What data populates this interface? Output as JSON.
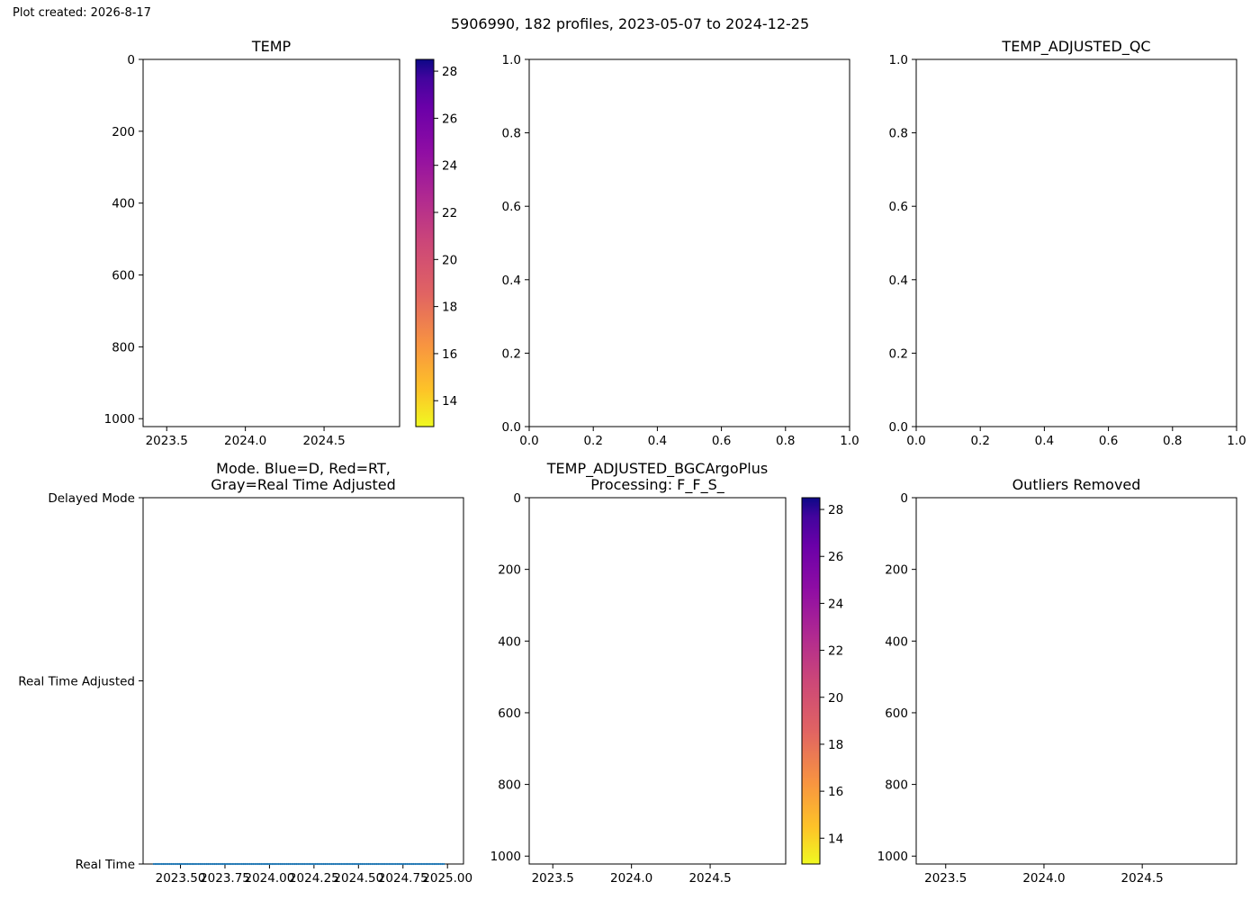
{
  "figure": {
    "created_label": "Plot created: 2026-8-17",
    "suptitle": "5906990, 182 profiles, 2023-05-07 to 2024-12-25"
  },
  "chart_data": [
    {
      "id": "temp",
      "type": "heatmap",
      "title": [
        "TEMP"
      ],
      "xlabel": "",
      "ylabel": "",
      "xlim": [
        2023.35,
        2024.98
      ],
      "ylim": [
        1022,
        0
      ],
      "x_ticks": [
        2023.5,
        2024.0,
        2024.5
      ],
      "x_tick_labels": [
        "2023.5",
        "2024.0",
        "2024.5"
      ],
      "y_ticks": [
        0,
        200,
        400,
        600,
        800,
        1000
      ],
      "y_tick_labels": [
        "0",
        "200",
        "400",
        "600",
        "800",
        "1000"
      ],
      "grid": false,
      "values": [],
      "colorbar": {
        "colormap": "plasma_r",
        "range": [
          12.9,
          28.5
        ],
        "ticks": [
          14,
          16,
          18,
          20,
          22,
          24,
          26,
          28
        ],
        "tick_labels": [
          "14",
          "16",
          "18",
          "20",
          "22",
          "24",
          "26",
          "28"
        ]
      }
    },
    {
      "id": "empty-1",
      "type": "scatter",
      "title": [
        ""
      ],
      "xlabel": "",
      "ylabel": "",
      "xlim": [
        0,
        1
      ],
      "ylim": [
        0,
        1
      ],
      "x_ticks": [
        0,
        0.2,
        0.4,
        0.6,
        0.8,
        1.0
      ],
      "x_tick_labels": [
        "0.0",
        "0.2",
        "0.4",
        "0.6",
        "0.8",
        "1.0"
      ],
      "y_ticks": [
        0,
        0.2,
        0.4,
        0.6,
        0.8,
        1.0
      ],
      "y_tick_labels": [
        "0.0",
        "0.2",
        "0.4",
        "0.6",
        "0.8",
        "1.0"
      ],
      "grid": false,
      "points": []
    },
    {
      "id": "temp-adjusted-qc",
      "type": "scatter",
      "title": [
        "TEMP_ADJUSTED_QC"
      ],
      "xlabel": "",
      "ylabel": "",
      "xlim": [
        0,
        1
      ],
      "ylim": [
        0,
        1
      ],
      "x_ticks": [
        0,
        0.2,
        0.4,
        0.6,
        0.8,
        1.0
      ],
      "x_tick_labels": [
        "0.0",
        "0.2",
        "0.4",
        "0.6",
        "0.8",
        "1.0"
      ],
      "y_ticks": [
        0,
        0.2,
        0.4,
        0.6,
        0.8,
        1.0
      ],
      "y_tick_labels": [
        "0.0",
        "0.2",
        "0.4",
        "0.6",
        "0.8",
        "1.0"
      ],
      "grid": false,
      "points": []
    },
    {
      "id": "mode",
      "type": "scatter",
      "title": [
        "Mode. Blue=D, Red=RT,",
        "Gray=Real Time Adjusted"
      ],
      "xlabel": "",
      "ylabel": "",
      "xlim": [
        2023.29,
        2025.09
      ],
      "ylim": [
        0,
        2
      ],
      "x_ticks": [
        2023.5,
        2023.75,
        2024.0,
        2024.25,
        2024.5,
        2024.75,
        2025.0
      ],
      "x_tick_labels": [
        "2023.50",
        "2023.75",
        "2024.00",
        "2024.25",
        "2024.50",
        "2024.75",
        "2025.00"
      ],
      "y_ticks": [
        0,
        1,
        2
      ],
      "y_tick_labels": [
        "Real Time",
        "Real Time Adjusted",
        "Delayed Mode"
      ],
      "grid": false,
      "series_color": "#1f77b4",
      "points": {
        "x_start": 2023.35,
        "x_end": 2024.98,
        "count": 182,
        "y": 0
      }
    },
    {
      "id": "temp-adjusted-bgcargoplus",
      "type": "heatmap",
      "title": [
        "TEMP_ADJUSTED_BGCArgoPlus",
        "Processing: F_F_S_"
      ],
      "xlabel": "",
      "ylabel": "",
      "xlim": [
        2023.35,
        2024.98
      ],
      "ylim": [
        1022,
        0
      ],
      "x_ticks": [
        2023.5,
        2024.0,
        2024.5
      ],
      "x_tick_labels": [
        "2023.5",
        "2024.0",
        "2024.5"
      ],
      "y_ticks": [
        0,
        200,
        400,
        600,
        800,
        1000
      ],
      "y_tick_labels": [
        "0",
        "200",
        "400",
        "600",
        "800",
        "1000"
      ],
      "grid": false,
      "values": [],
      "colorbar": {
        "colormap": "plasma_r",
        "range": [
          12.9,
          28.5
        ],
        "ticks": [
          14,
          16,
          18,
          20,
          22,
          24,
          26,
          28
        ],
        "tick_labels": [
          "14",
          "16",
          "18",
          "20",
          "22",
          "24",
          "26",
          "28"
        ]
      }
    },
    {
      "id": "outliers-removed",
      "type": "heatmap",
      "title": [
        "Outliers Removed"
      ],
      "xlabel": "",
      "ylabel": "",
      "xlim": [
        2023.35,
        2024.98
      ],
      "ylim": [
        1022,
        0
      ],
      "x_ticks": [
        2023.5,
        2024.0,
        2024.5
      ],
      "x_tick_labels": [
        "2023.5",
        "2024.0",
        "2024.5"
      ],
      "y_ticks": [
        0,
        200,
        400,
        600,
        800,
        1000
      ],
      "y_tick_labels": [
        "0",
        "200",
        "400",
        "600",
        "800",
        "1000"
      ],
      "grid": false,
      "values": []
    }
  ]
}
